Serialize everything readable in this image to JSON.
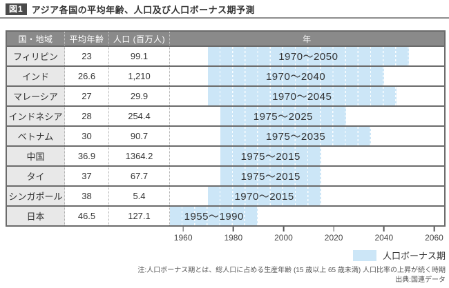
{
  "figure": {
    "badge": "図1",
    "title": "アジア各国の平均年齢、人口及び人口ボーナス期予測"
  },
  "table": {
    "headers": {
      "country": "国・地域",
      "avg_age": "平均年齢",
      "population": "人口 (百万人)",
      "year": "年"
    }
  },
  "chart_data": {
    "type": "bar",
    "variant": "gantt-timeline",
    "title": "アジア各国の平均年齢、人口及び人口ボーナス期予測",
    "axis": {
      "min": 1955,
      "max": 2064,
      "ticks": [
        1960,
        1980,
        2000,
        2020,
        2040,
        2060
      ]
    },
    "rows": [
      {
        "country": "フィリピン",
        "avg_age": "23",
        "population": "99.1",
        "start": 1970,
        "end": 2050,
        "label": "1970～2050"
      },
      {
        "country": "インド",
        "avg_age": "26.6",
        "population": "1,210",
        "start": 1970,
        "end": 2040,
        "label": "1970～2040"
      },
      {
        "country": "マレーシア",
        "avg_age": "27",
        "population": "29.9",
        "start": 1970,
        "end": 2045,
        "label": "1970～2045"
      },
      {
        "country": "インドネシア",
        "avg_age": "28",
        "population": "254.4",
        "start": 1975,
        "end": 2025,
        "label": "1975～2025"
      },
      {
        "country": "ベトナム",
        "avg_age": "30",
        "population": "90.7",
        "start": 1975,
        "end": 2035,
        "label": "1975～2035"
      },
      {
        "country": "中国",
        "avg_age": "36.9",
        "population": "1364.2",
        "start": 1975,
        "end": 2015,
        "label": "1975～2015"
      },
      {
        "country": "タイ",
        "avg_age": "37",
        "population": "67.7",
        "start": 1975,
        "end": 2015,
        "label": "1975～2015"
      },
      {
        "country": "シンガポール",
        "avg_age": "38",
        "population": "5.4",
        "start": 1970,
        "end": 2015,
        "label": "1970～2015"
      },
      {
        "country": "日本",
        "avg_age": "46.5",
        "population": "127.1",
        "start": 1955,
        "end": 1990,
        "label": "1955～1990"
      }
    ]
  },
  "legend": {
    "label": "人口ボーナス期",
    "color": "#cce6f7"
  },
  "notes": {
    "note": "注:人口ボーナス期とは、総人口に占める生産年齢 (15 歳以上 65 歳未満) 人口比率の上昇が続く時期",
    "source": "出典:国連データ"
  }
}
